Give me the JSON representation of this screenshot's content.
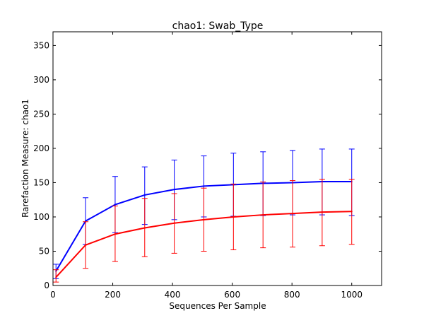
{
  "chart_data": {
    "type": "line",
    "title": "chao1: Swab_Type",
    "xlabel": "Sequences Per Sample",
    "ylabel": "Rarefaction Measure: chao1",
    "xlim": [
      0,
      1100
    ],
    "ylim": [
      0,
      370
    ],
    "xticks": [
      0,
      200,
      400,
      600,
      800,
      1000
    ],
    "yticks": [
      0,
      50,
      100,
      150,
      200,
      250,
      300,
      350
    ],
    "grid": false,
    "legend": "none",
    "x": [
      10,
      109,
      208,
      307,
      406,
      505,
      604,
      703,
      802,
      901,
      1000
    ],
    "series": [
      {
        "color": "#0000ff",
        "values": [
          21,
          94,
          118,
          132,
          140,
          145,
          147,
          149,
          150,
          151.5,
          151.5
        ],
        "err_low": [
          10,
          60,
          77,
          89,
          96,
          100,
          101,
          102,
          103,
          103,
          102
        ],
        "err_high": [
          31,
          128,
          159,
          173,
          183,
          189,
          193,
          195,
          197,
          199,
          199
        ]
      },
      {
        "color": "#ff0000",
        "values": [
          12,
          59,
          75,
          84,
          91,
          96,
          100,
          103,
          105,
          107,
          108
        ],
        "err_low": [
          5,
          25,
          35,
          42,
          47,
          50,
          52,
          55,
          56,
          58,
          60
        ],
        "err_high": [
          23,
          93,
          116,
          127,
          134,
          142,
          148,
          151,
          153,
          155,
          155
        ]
      }
    ]
  }
}
